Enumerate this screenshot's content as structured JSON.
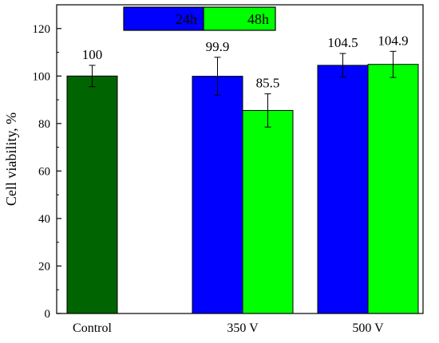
{
  "chart_data": {
    "type": "bar",
    "categories": [
      "Control",
      "350 V",
      "500 V"
    ],
    "ylabel": "Cell viability, %",
    "xlabel": "",
    "ylim": [
      0,
      130
    ],
    "yticks": [
      0,
      20,
      40,
      60,
      80,
      100,
      120
    ],
    "grid": false,
    "legend_position": "top-center",
    "legend": [
      {
        "name": "24h",
        "color": "#0000ff"
      },
      {
        "name": "48h",
        "color": "#00ff00"
      }
    ],
    "bars": [
      {
        "category": "Control",
        "series": "",
        "value": 100,
        "error": 4.5,
        "label": "100",
        "color": "#006400"
      },
      {
        "category": "350 V",
        "series": "24h",
        "value": 99.9,
        "error": 8,
        "label": "99.9",
        "color": "#0000ff"
      },
      {
        "category": "350 V",
        "series": "48h",
        "value": 85.5,
        "error": 7,
        "label": "85.5",
        "color": "#00ff00"
      },
      {
        "category": "500 V",
        "series": "24h",
        "value": 104.5,
        "error": 5,
        "label": "104.5",
        "color": "#0000ff"
      },
      {
        "category": "500 V",
        "series": "48h",
        "value": 104.9,
        "error": 5.5,
        "label": "104.9",
        "color": "#00ff00"
      }
    ]
  }
}
